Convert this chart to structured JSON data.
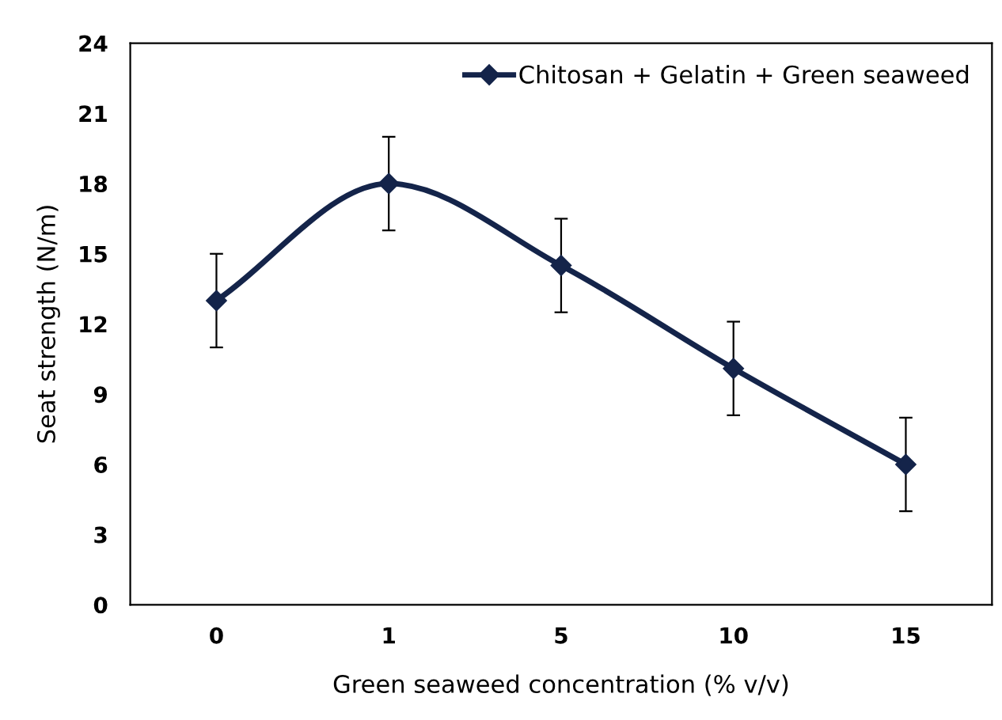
{
  "chart_data": {
    "type": "line",
    "xlabel": "Green seaweed concentration (% v/v)",
    "ylabel": "Seat strength (N/m)",
    "categories": [
      "0",
      "1",
      "5",
      "10",
      "15"
    ],
    "series": [
      {
        "name": "Chitosan + Gelatin + Green seaweed",
        "color": "#14244a",
        "values": [
          13,
          18,
          14.5,
          10.1,
          6
        ],
        "errors": [
          2,
          2,
          2,
          2,
          2
        ]
      }
    ],
    "ylim": [
      0,
      24
    ],
    "yticks": [
      0,
      3,
      6,
      9,
      12,
      15,
      18,
      21,
      24
    ],
    "grid": false,
    "legend": "top right",
    "marker": "diamond",
    "line_style": "solid"
  }
}
